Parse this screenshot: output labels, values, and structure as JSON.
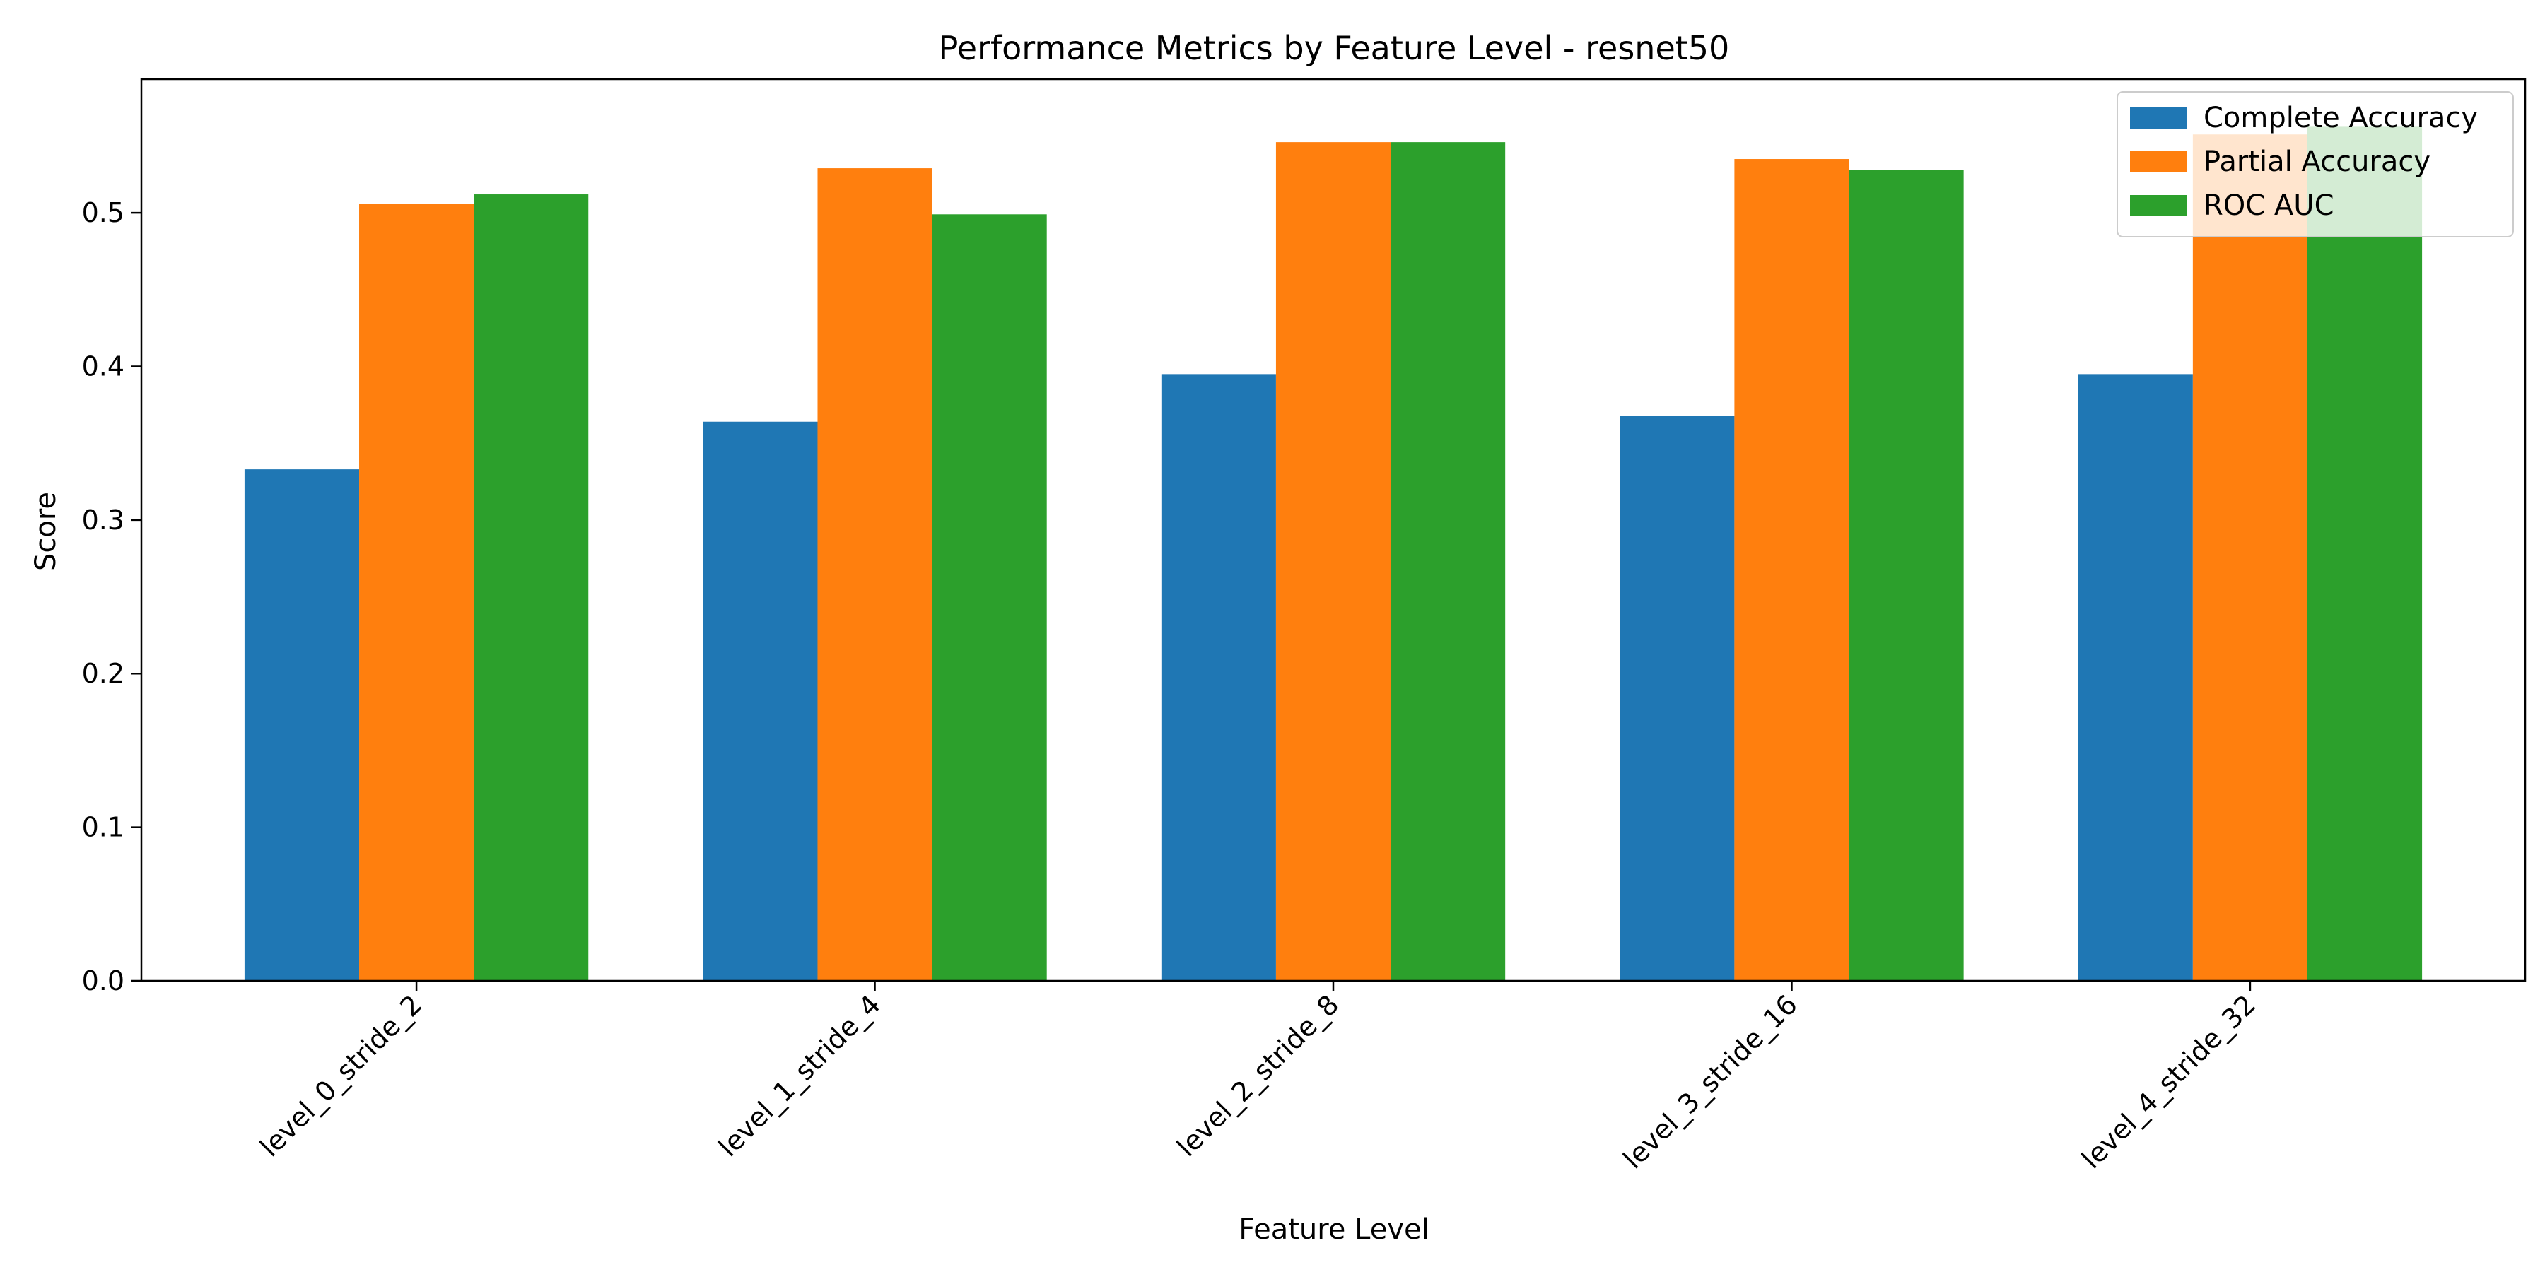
{
  "chart_data": {
    "type": "bar",
    "title": "Performance Metrics by Feature Level - resnet50",
    "xlabel": "Feature Level",
    "ylabel": "Score",
    "ylim": [
      0,
      0.587
    ],
    "yticks": [
      0.0,
      0.1,
      0.2,
      0.3,
      0.4,
      0.5
    ],
    "categories": [
      "level_0_stride_2",
      "level_1_stride_4",
      "level_2_stride_8",
      "level_3_stride_16",
      "level_4_stride_32"
    ],
    "series": [
      {
        "name": "Complete Accuracy",
        "color": "#1f77b4",
        "values": [
          0.333,
          0.364,
          0.395,
          0.368,
          0.395
        ]
      },
      {
        "name": "Partial Accuracy",
        "color": "#ff7f0e",
        "values": [
          0.506,
          0.529,
          0.546,
          0.535,
          0.551
        ]
      },
      {
        "name": "ROC AUC",
        "color": "#2ca02c",
        "values": [
          0.512,
          0.499,
          0.546,
          0.528,
          0.556
        ]
      }
    ],
    "legend_position": "top-right",
    "grid": false
  }
}
